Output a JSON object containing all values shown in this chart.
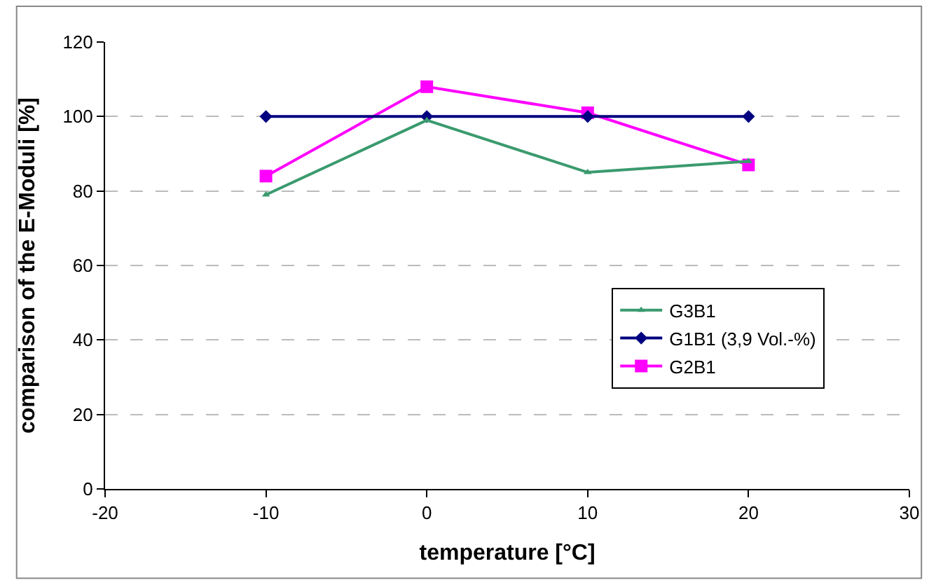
{
  "chart_data": {
    "type": "line",
    "xlabel": "temperature [°C]",
    "ylabel": "comparison of the E-Moduli [%]",
    "x": [
      -10,
      0,
      10,
      20
    ],
    "series": [
      {
        "name": "G3B1",
        "color": "#3a9a6e",
        "marker": "triangle",
        "values": [
          79,
          99,
          85,
          88
        ]
      },
      {
        "name": "G1B1 (3,9 Vol.-%)",
        "color": "#000080",
        "marker": "diamond",
        "values": [
          100,
          100,
          100,
          100
        ]
      },
      {
        "name": "G2B1",
        "color": "#ff00ff",
        "marker": "square",
        "values": [
          84,
          108,
          101,
          87
        ]
      }
    ],
    "xlim": [
      -20,
      30
    ],
    "xticks": [
      -20,
      -10,
      0,
      10,
      20,
      30
    ],
    "ylim": [
      0,
      120
    ],
    "yticks": [
      0,
      20,
      40,
      60,
      80,
      100,
      120
    ],
    "grid": "y",
    "legend": "right"
  }
}
